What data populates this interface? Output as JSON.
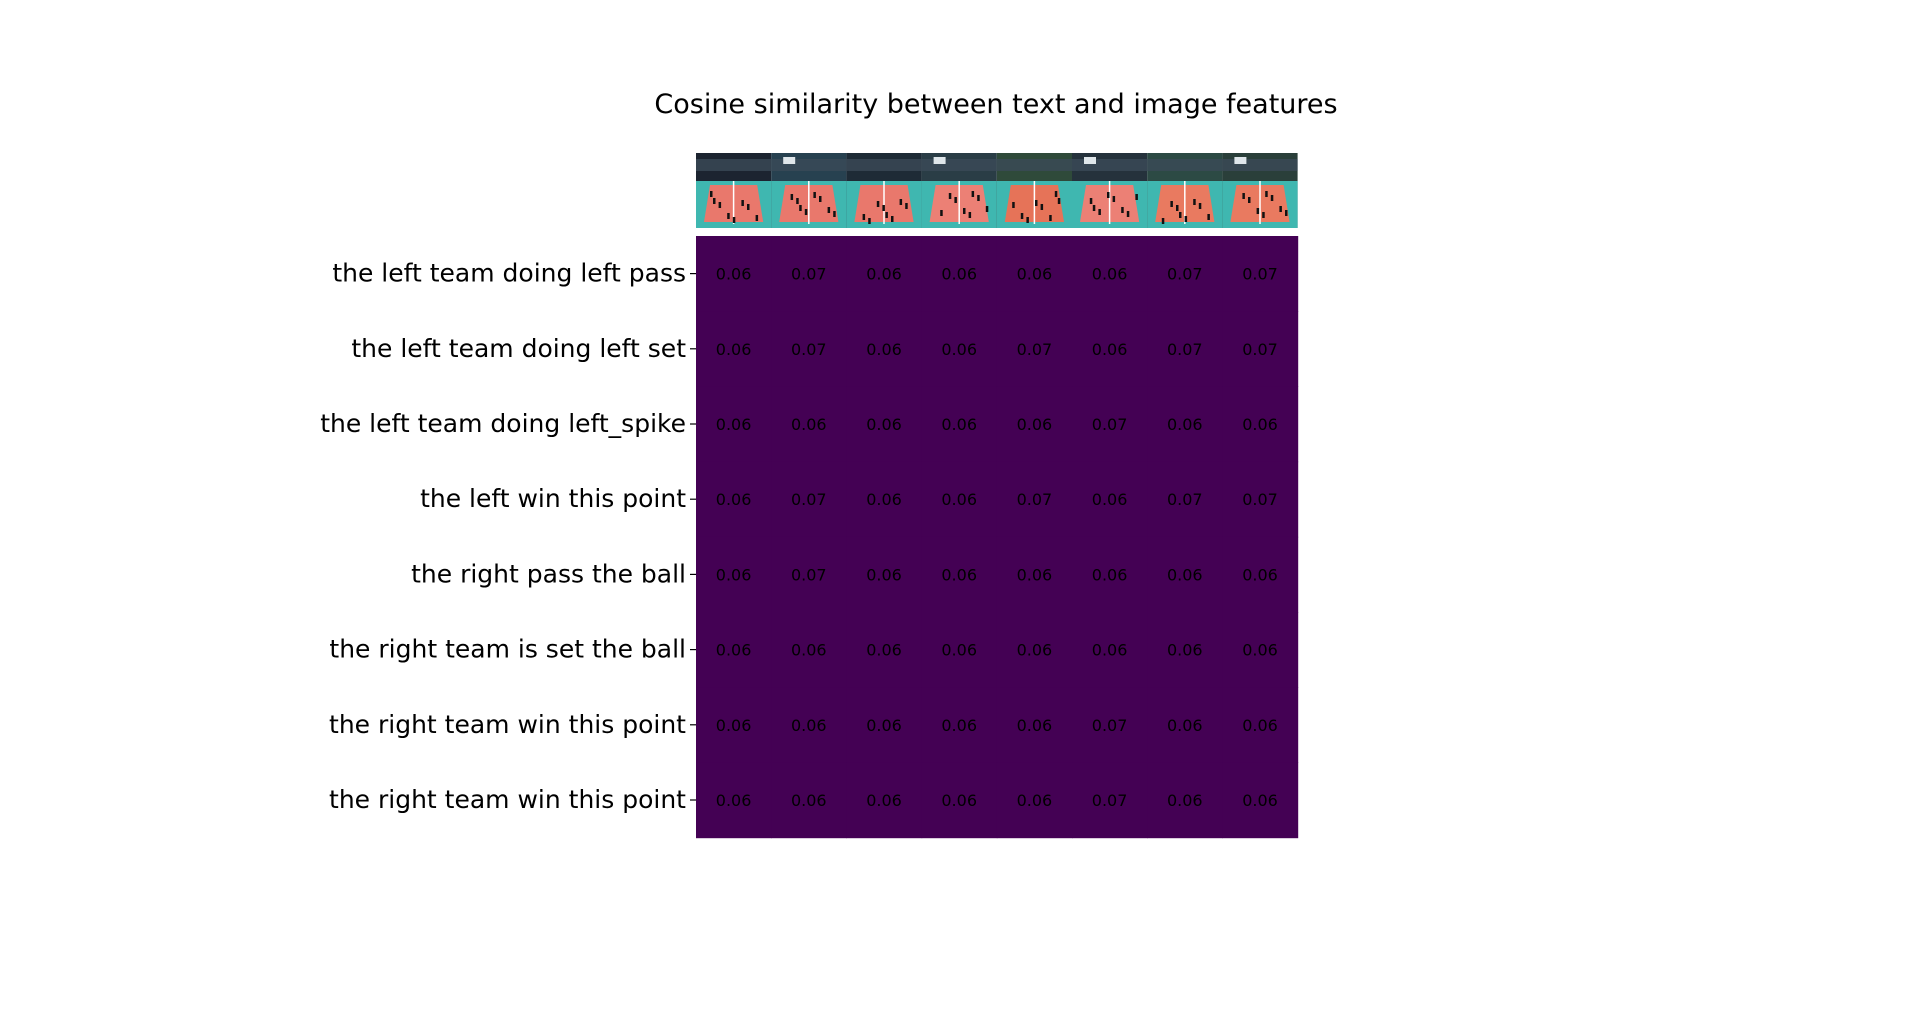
{
  "chart_data": {
    "type": "heatmap",
    "title": "Cosine similarity between text and image features",
    "rows": [
      "the left team doing left pass",
      "the left team doing left set",
      "the left team doing left_spike",
      "the left win this point",
      "the right pass the ball",
      "the right team is set the ball",
      "the right team win this point",
      "the right team win this point"
    ],
    "columns_count": 8,
    "values": [
      [
        0.06,
        0.07,
        0.06,
        0.06,
        0.06,
        0.06,
        0.07,
        0.07
      ],
      [
        0.06,
        0.07,
        0.06,
        0.06,
        0.07,
        0.06,
        0.07,
        0.07
      ],
      [
        0.06,
        0.06,
        0.06,
        0.06,
        0.06,
        0.07,
        0.06,
        0.06
      ],
      [
        0.06,
        0.07,
        0.06,
        0.06,
        0.07,
        0.06,
        0.07,
        0.07
      ],
      [
        0.06,
        0.07,
        0.06,
        0.06,
        0.06,
        0.06,
        0.06,
        0.06
      ],
      [
        0.06,
        0.06,
        0.06,
        0.06,
        0.06,
        0.06,
        0.06,
        0.06
      ],
      [
        0.06,
        0.06,
        0.06,
        0.06,
        0.06,
        0.07,
        0.06,
        0.06
      ],
      [
        0.06,
        0.06,
        0.06,
        0.06,
        0.06,
        0.07,
        0.06,
        0.06
      ]
    ],
    "cell_color": "#440154",
    "value_text_color": "#000000",
    "column_headers": "volleyball video frame thumbnails (8)",
    "grid": false
  }
}
